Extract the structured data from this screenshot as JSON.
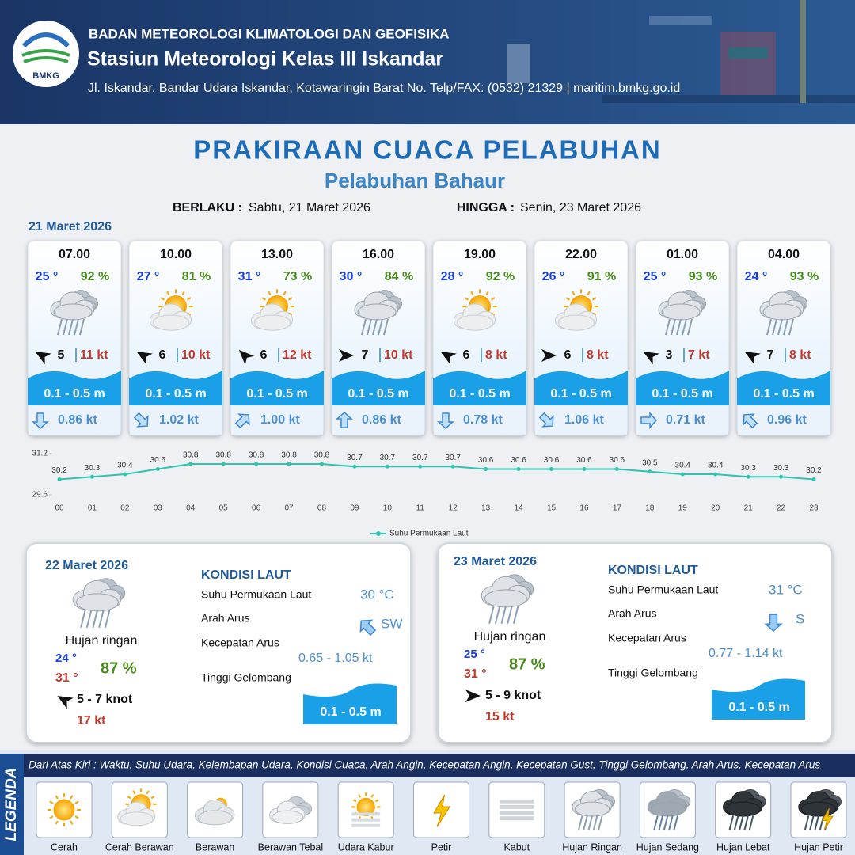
{
  "header": {
    "logo": "BMKG",
    "agency": "BADAN METEOROLOGI KLIMATOLOGI DAN GEOFISIKA",
    "station": "Stasiun Meteorologi Kelas III Iskandar",
    "address": "Jl. Iskandar, Bandar Udara Iskandar, Kotawaringin Barat No. Telp/FAX: (0532) 21329 | maritim.bmkg.go.id"
  },
  "title": "PRAKIRAAN CUACA PELABUHAN",
  "subtitle": "Pelabuhan Bahaur",
  "validity": {
    "from_label": "BERLAKU :",
    "from": "Sabtu, 21 Maret 2026",
    "to_label": "HINGGA :",
    "to": "Senin, 23 Maret 2026"
  },
  "day1": {
    "date": "21 Maret 2026",
    "forecasts": [
      {
        "time": "07.00",
        "temp": "25 °",
        "humidity": "92 %",
        "wind": "5",
        "gust": "11 kt",
        "wave": "0.1 - 0.5 m",
        "current": "0.86 kt"
      },
      {
        "time": "10.00",
        "temp": "27 °",
        "humidity": "81 %",
        "wind": "6",
        "gust": "10 kt",
        "wave": "0.1 - 0.5 m",
        "current": "1.02 kt"
      },
      {
        "time": "13.00",
        "temp": "31 °",
        "humidity": "73 %",
        "wind": "6",
        "gust": "12 kt",
        "wave": "0.1 - 0.5 m",
        "current": "1.00 kt"
      },
      {
        "time": "16.00",
        "temp": "30 °",
        "humidity": "84 %",
        "wind": "7",
        "gust": "10 kt",
        "wave": "0.1 - 0.5 m",
        "current": "0.86 kt"
      },
      {
        "time": "19.00",
        "temp": "28 °",
        "humidity": "92 %",
        "wind": "6",
        "gust": "8 kt",
        "wave": "0.1 - 0.5 m",
        "current": "0.78 kt"
      },
      {
        "time": "22.00",
        "temp": "26 °",
        "humidity": "91 %",
        "wind": "6",
        "gust": "8 kt",
        "wave": "0.1 - 0.5 m",
        "current": "1.06 kt"
      },
      {
        "time": "01.00",
        "temp": "25 °",
        "humidity": "93 %",
        "wind": "3",
        "gust": "7 kt",
        "wave": "0.1 - 0.5 m",
        "current": "0.71 kt"
      },
      {
        "time": "04.00",
        "temp": "24 °",
        "humidity": "93 %",
        "wind": "7",
        "gust": "8 kt",
        "wave": "0.1 - 0.5 m",
        "current": "0.96 kt"
      }
    ]
  },
  "chart_data": {
    "type": "line",
    "categories": [
      "00",
      "01",
      "02",
      "03",
      "04",
      "05",
      "06",
      "07",
      "08",
      "09",
      "10",
      "11",
      "12",
      "13",
      "14",
      "15",
      "16",
      "17",
      "18",
      "19",
      "20",
      "21",
      "22",
      "23"
    ],
    "series": [
      {
        "name": "Suhu Permukaan Laut",
        "color": "#2ec4b0",
        "values": [
          30.2,
          30.3,
          30.4,
          30.6,
          30.8,
          30.8,
          30.8,
          30.8,
          30.8,
          30.7,
          30.7,
          30.7,
          30.7,
          30.6,
          30.6,
          30.6,
          30.6,
          30.6,
          30.5,
          30.4,
          30.4,
          30.3,
          30.3,
          30.2
        ]
      }
    ],
    "ylim": [
      29.6,
      31.2
    ],
    "yticks": [
      29.6,
      31.2
    ]
  },
  "days": [
    {
      "date": "22 Maret 2026",
      "condition": "Hujan ringan",
      "temp_min": "24 °",
      "temp_max": "31 °",
      "humidity": "87 %",
      "wind": "5  - 7 knot",
      "gust": "17 kt",
      "sea": {
        "title": "KONDISI LAUT",
        "sst_label": "Suhu Permukaan Laut",
        "sst": "30 °C",
        "dir_label": "Arah Arus",
        "dir": "SW",
        "speed_label": "Kecepatan Arus",
        "speed": "0.65  - 1.05 kt",
        "wave_label": "Tinggi Gelombang",
        "wave": "0.1 - 0.5 m"
      }
    },
    {
      "date": "23 Maret 2026",
      "condition": "Hujan ringan",
      "temp_min": "25 °",
      "temp_max": "31 °",
      "humidity": "87 %",
      "wind": "5  - 9 knot",
      "gust": "15 kt",
      "sea": {
        "title": "KONDISI LAUT",
        "sst_label": "Suhu Permukaan Laut",
        "sst": "31 °C",
        "dir_label": "Arah Arus",
        "dir": "S",
        "speed_label": "Kecepatan Arus",
        "speed": "0.77 - 1.14 kt",
        "wave_label": "Tinggi Gelombang",
        "wave": "0.1 - 0.5 m"
      }
    }
  ],
  "legend": {
    "title": "LEGENDA",
    "description": "Dari Atas Kiri : Waktu, Suhu Udara, Kelembapan Udara, Kondisi Cuaca, Arah Angin, Kecepatan Angin, Kecepatan Gust, Tinggi Gelombang, Arah Arus, Kecepatan Arus",
    "items": [
      "Cerah",
      "Cerah Berawan",
      "Berawan",
      "Berawan Tebal",
      "Udara Kabur",
      "Petir",
      "Kabut",
      "Hujan Ringan",
      "Hujan Sedang",
      "Hujan Lebat",
      "Hujan Petir"
    ]
  }
}
